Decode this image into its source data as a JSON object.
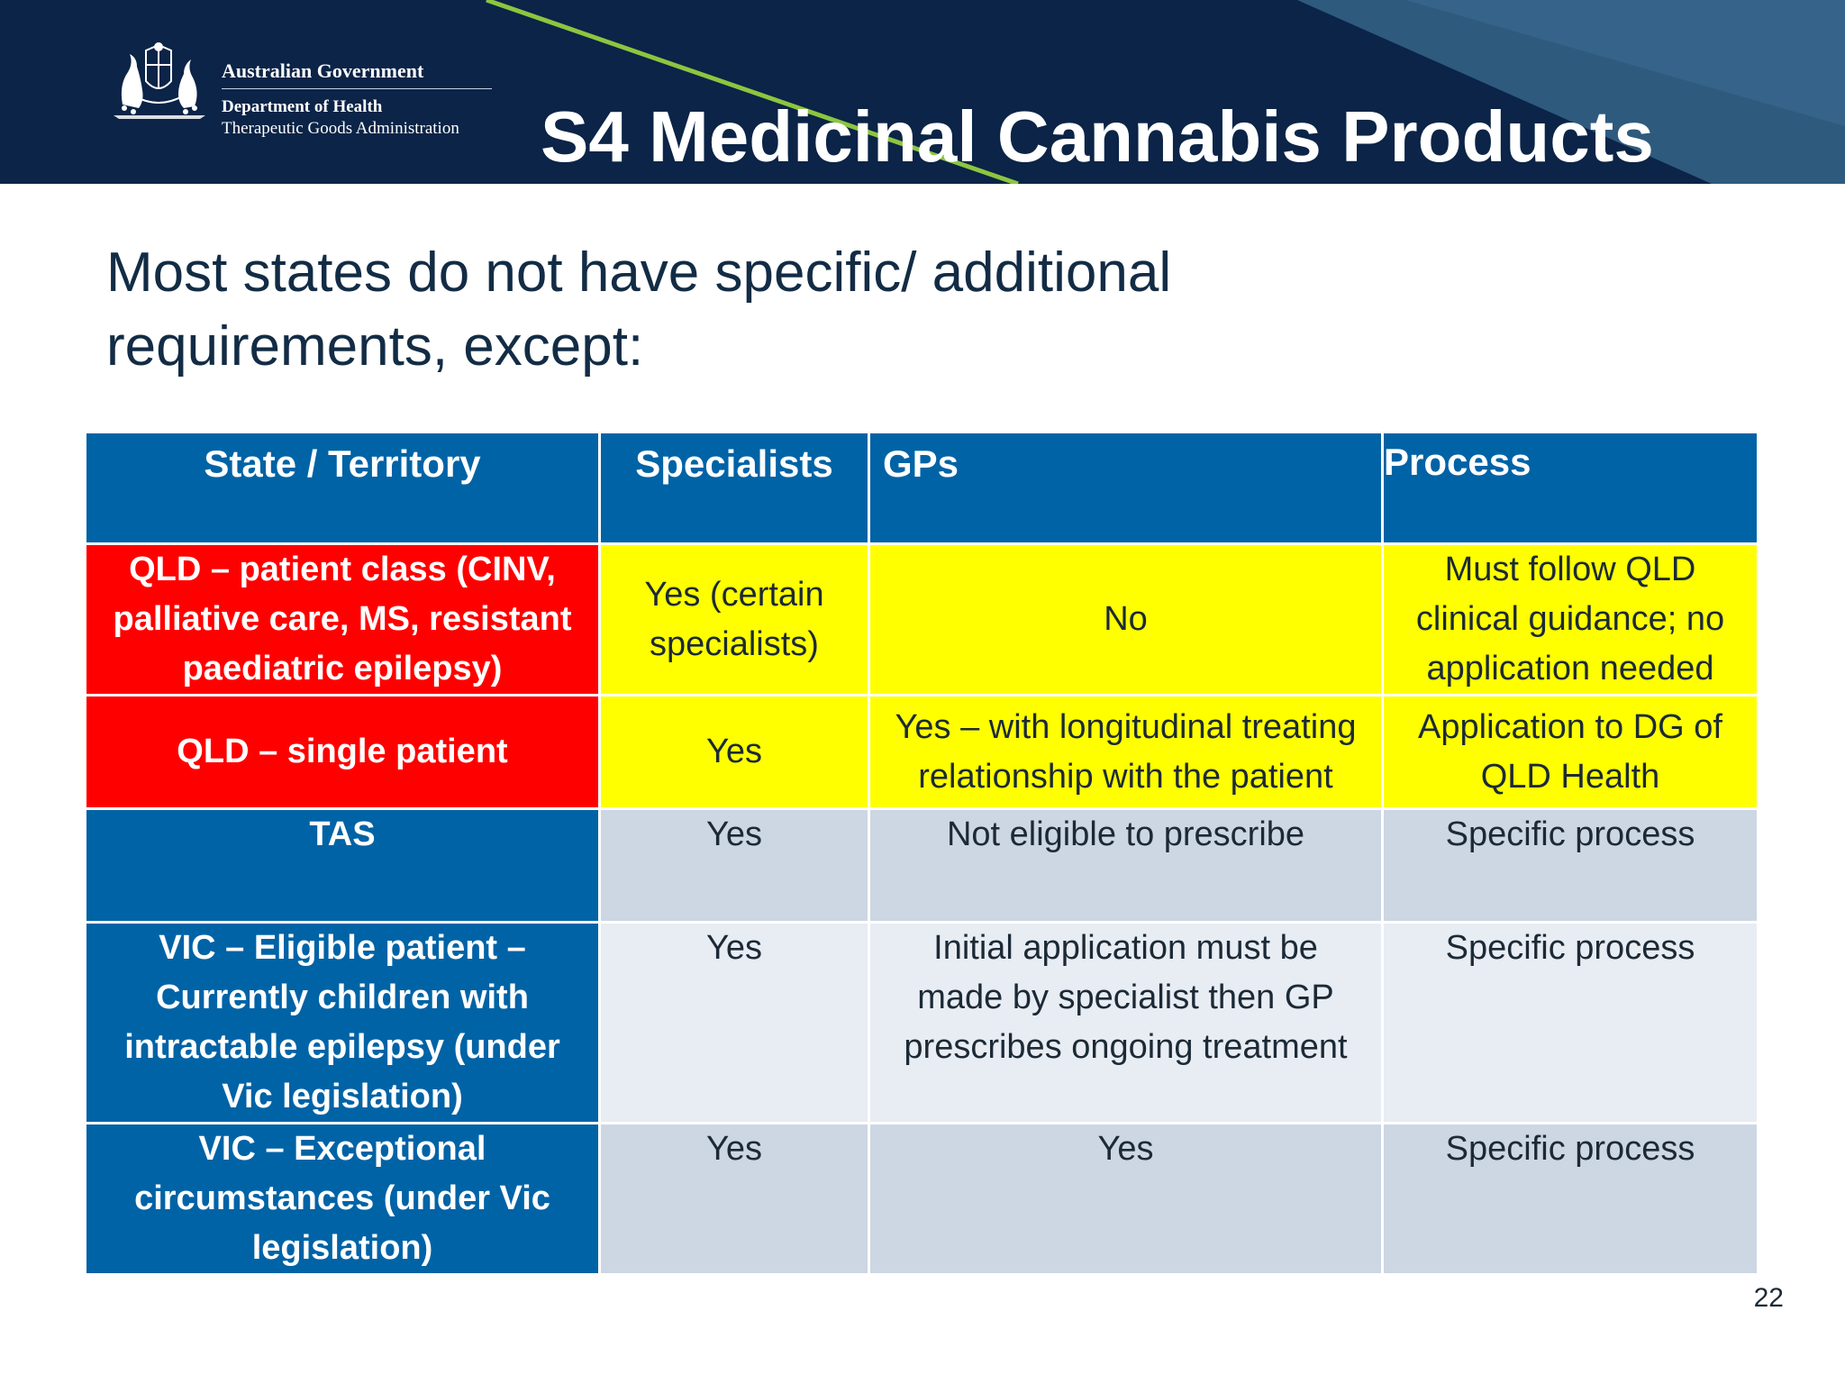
{
  "header": {
    "gov_name": "Australian Government",
    "department": "Department of Health",
    "agency": "Therapeutic Goods Administration",
    "title": "S4 Medicinal Cannabis Products"
  },
  "subtitle": {
    "line1": "Most states do not have specific/ additional",
    "line2": "requirements, except:"
  },
  "table": {
    "headers": [
      "State / Territory",
      "Specialists",
      "GPs",
      "Process"
    ],
    "rows": [
      {
        "state": [
          "QLD – patient class (CINV,",
          "palliative care, MS, resistant",
          "paediatric epilepsy)"
        ],
        "specialists": [
          "Yes (certain",
          "specialists)"
        ],
        "gps": [
          "No"
        ],
        "process": [
          "Must follow QLD",
          "clinical guidance; no",
          "application needed"
        ]
      },
      {
        "state": [
          "QLD – single patient"
        ],
        "specialists": [
          "Yes"
        ],
        "gps": [
          "Yes – with longitudinal treating",
          "relationship with the patient"
        ],
        "process": [
          "Application to DG of",
          "QLD Health"
        ]
      },
      {
        "state": [
          "TAS"
        ],
        "specialists": [
          "Yes"
        ],
        "gps": [
          "Not eligible to prescribe"
        ],
        "process": [
          "Specific process"
        ]
      },
      {
        "state": [
          "VIC – Eligible patient –",
          "Currently children with",
          "intractable epilepsy (under",
          "Vic legislation)"
        ],
        "specialists": [
          "Yes"
        ],
        "gps": [
          "Initial application must be",
          "made by specialist then GP",
          "prescribes ongoing treatment"
        ],
        "process": [
          "Specific process"
        ]
      },
      {
        "state": [
          "VIC – Exceptional",
          "circumstances (under Vic",
          "legislation)"
        ],
        "specialists": [
          "Yes"
        ],
        "gps": [
          "Yes"
        ],
        "process": [
          "Specific process"
        ]
      }
    ]
  },
  "page_number": "22",
  "colors": {
    "header_navy": "#0b2447",
    "header_accent_stripe": "#8cc63f",
    "header_accent_panel": "#2e5a7e",
    "table_blue": "#0063a6",
    "highlight_red": "#ff0000",
    "highlight_yellow": "#ffff00",
    "cell_grey": "#cdd6e3",
    "cell_light": "#e8ecf3"
  },
  "icons": {
    "crest": "coat-of-arms-icon"
  }
}
